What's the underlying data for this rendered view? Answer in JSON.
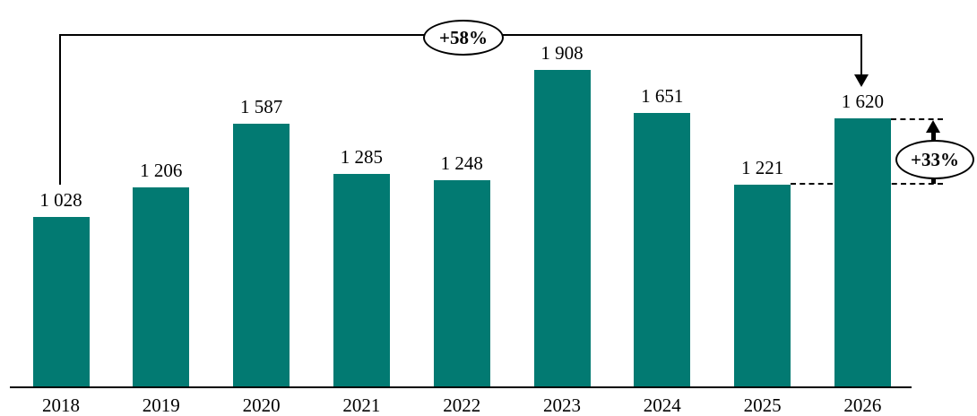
{
  "chart_data": {
    "type": "bar",
    "title": "",
    "xlabel": "",
    "ylabel": "",
    "categories": [
      "2018",
      "2019",
      "2020",
      "2021",
      "2022",
      "2023",
      "2024",
      "2025",
      "2026"
    ],
    "values": [
      1028,
      1206,
      1587,
      1285,
      1248,
      1908,
      1651,
      1221,
      1620
    ],
    "value_labels": [
      "1 028",
      "1 206",
      "1 587",
      "1 285",
      "1 248",
      "1 908",
      "1 651",
      "1 221",
      "1 620"
    ],
    "bar_color": "#027a72",
    "axis_color": "#000000",
    "ylim": [
      0,
      2000
    ],
    "grid": false,
    "legend": null,
    "annotations": [
      {
        "id": "total-growth",
        "label": "+58%",
        "from": "2018",
        "to": "2026",
        "style": "bracket-arrow"
      },
      {
        "id": "recent-growth",
        "label": "+33%",
        "from": "2025",
        "to": "2026",
        "style": "delta-arrow"
      }
    ]
  }
}
